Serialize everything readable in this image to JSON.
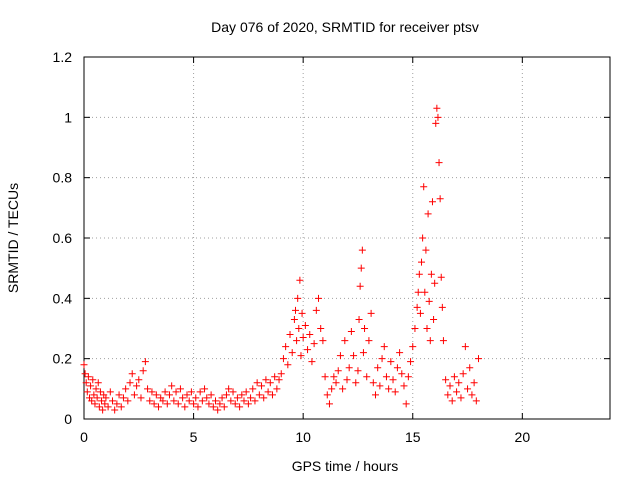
{
  "chart_data": {
    "type": "scatter",
    "title": "Day 076 of 2020, SRMTID for receiver ptsv",
    "xlabel": "GPS time / hours",
    "ylabel": "SRMTID / TECUs",
    "xlim": [
      0,
      24
    ],
    "ylim": [
      0,
      1.2
    ],
    "xticks": [
      0,
      5,
      10,
      15,
      20
    ],
    "yticks": [
      0,
      0.2,
      0.4,
      0.6,
      0.8,
      1,
      1.2
    ],
    "xtick_labels": [
      "0",
      "5",
      "10",
      "15",
      "20"
    ],
    "ytick_labels": [
      "0",
      "0.2",
      "0.4",
      "0.6",
      "0.8",
      "1",
      "1.2"
    ],
    "grid": true,
    "marker": "+",
    "color": "#ff0000",
    "series": [
      {
        "name": "SRMTID",
        "points": [
          [
            0.0,
            0.18
          ],
          [
            0.05,
            0.15
          ],
          [
            0.1,
            0.12
          ],
          [
            0.15,
            0.09
          ],
          [
            0.2,
            0.14
          ],
          [
            0.25,
            0.07
          ],
          [
            0.3,
            0.11
          ],
          [
            0.35,
            0.06
          ],
          [
            0.4,
            0.13
          ],
          [
            0.45,
            0.08
          ],
          [
            0.5,
            0.05
          ],
          [
            0.55,
            0.1
          ],
          [
            0.6,
            0.07
          ],
          [
            0.65,
            0.12
          ],
          [
            0.7,
            0.04
          ],
          [
            0.75,
            0.09
          ],
          [
            0.8,
            0.06
          ],
          [
            0.85,
            0.03
          ],
          [
            0.9,
            0.08
          ],
          [
            0.95,
            0.05
          ],
          [
            1.0,
            0.07
          ],
          [
            1.1,
            0.04
          ],
          [
            1.2,
            0.09
          ],
          [
            1.3,
            0.06
          ],
          [
            1.4,
            0.03
          ],
          [
            1.5,
            0.05
          ],
          [
            1.6,
            0.08
          ],
          [
            1.7,
            0.04
          ],
          [
            1.8,
            0.07
          ],
          [
            1.9,
            0.1
          ],
          [
            2.0,
            0.06
          ],
          [
            2.1,
            0.12
          ],
          [
            2.2,
            0.15
          ],
          [
            2.3,
            0.08
          ],
          [
            2.4,
            0.11
          ],
          [
            2.5,
            0.13
          ],
          [
            2.6,
            0.07
          ],
          [
            2.7,
            0.16
          ],
          [
            2.8,
            0.19
          ],
          [
            2.9,
            0.1
          ],
          [
            3.0,
            0.06
          ],
          [
            3.1,
            0.09
          ],
          [
            3.2,
            0.05
          ],
          [
            3.3,
            0.08
          ],
          [
            3.4,
            0.04
          ],
          [
            3.5,
            0.07
          ],
          [
            3.6,
            0.06
          ],
          [
            3.7,
            0.09
          ],
          [
            3.8,
            0.05
          ],
          [
            3.9,
            0.08
          ],
          [
            4.0,
            0.11
          ],
          [
            4.1,
            0.06
          ],
          [
            4.2,
            0.09
          ],
          [
            4.3,
            0.05
          ],
          [
            4.4,
            0.1
          ],
          [
            4.5,
            0.07
          ],
          [
            4.6,
            0.04
          ],
          [
            4.7,
            0.08
          ],
          [
            4.8,
            0.06
          ],
          [
            4.9,
            0.09
          ],
          [
            5.0,
            0.05
          ],
          [
            5.1,
            0.07
          ],
          [
            5.2,
            0.04
          ],
          [
            5.3,
            0.09
          ],
          [
            5.4,
            0.06
          ],
          [
            5.5,
            0.1
          ],
          [
            5.6,
            0.07
          ],
          [
            5.7,
            0.05
          ],
          [
            5.8,
            0.08
          ],
          [
            5.9,
            0.04
          ],
          [
            6.0,
            0.06
          ],
          [
            6.1,
            0.03
          ],
          [
            6.2,
            0.05
          ],
          [
            6.3,
            0.07
          ],
          [
            6.4,
            0.04
          ],
          [
            6.5,
            0.08
          ],
          [
            6.6,
            0.1
          ],
          [
            6.7,
            0.06
          ],
          [
            6.8,
            0.09
          ],
          [
            6.9,
            0.05
          ],
          [
            7.0,
            0.07
          ],
          [
            7.1,
            0.04
          ],
          [
            7.2,
            0.08
          ],
          [
            7.3,
            0.06
          ],
          [
            7.4,
            0.09
          ],
          [
            7.5,
            0.05
          ],
          [
            7.6,
            0.07
          ],
          [
            7.7,
            0.1
          ],
          [
            7.8,
            0.06
          ],
          [
            7.9,
            0.12
          ],
          [
            8.0,
            0.08
          ],
          [
            8.1,
            0.11
          ],
          [
            8.2,
            0.07
          ],
          [
            8.3,
            0.13
          ],
          [
            8.4,
            0.09
          ],
          [
            8.5,
            0.12
          ],
          [
            8.6,
            0.08
          ],
          [
            8.7,
            0.14
          ],
          [
            8.8,
            0.1
          ],
          [
            8.9,
            0.13
          ],
          [
            9.0,
            0.15
          ],
          [
            9.1,
            0.2
          ],
          [
            9.2,
            0.24
          ],
          [
            9.3,
            0.18
          ],
          [
            9.4,
            0.28
          ],
          [
            9.5,
            0.22
          ],
          [
            9.6,
            0.33
          ],
          [
            9.65,
            0.36
          ],
          [
            9.7,
            0.26
          ],
          [
            9.75,
            0.4
          ],
          [
            9.8,
            0.3
          ],
          [
            9.85,
            0.46
          ],
          [
            9.9,
            0.21
          ],
          [
            9.95,
            0.35
          ],
          [
            10.0,
            0.27
          ],
          [
            10.1,
            0.31
          ],
          [
            10.2,
            0.23
          ],
          [
            10.3,
            0.28
          ],
          [
            10.4,
            0.19
          ],
          [
            10.5,
            0.25
          ],
          [
            10.6,
            0.36
          ],
          [
            10.7,
            0.4
          ],
          [
            10.8,
            0.3
          ],
          [
            10.9,
            0.26
          ],
          [
            11.0,
            0.14
          ],
          [
            11.1,
            0.08
          ],
          [
            11.2,
            0.05
          ],
          [
            11.3,
            0.1
          ],
          [
            11.4,
            0.14
          ],
          [
            11.5,
            0.12
          ],
          [
            11.6,
            0.16
          ],
          [
            11.7,
            0.21
          ],
          [
            11.8,
            0.1
          ],
          [
            11.9,
            0.26
          ],
          [
            12.0,
            0.13
          ],
          [
            12.1,
            0.17
          ],
          [
            12.2,
            0.29
          ],
          [
            12.3,
            0.21
          ],
          [
            12.4,
            0.12
          ],
          [
            12.5,
            0.16
          ],
          [
            12.55,
            0.33
          ],
          [
            12.6,
            0.44
          ],
          [
            12.65,
            0.5
          ],
          [
            12.7,
            0.56
          ],
          [
            12.75,
            0.22
          ],
          [
            12.8,
            0.3
          ],
          [
            12.9,
            0.14
          ],
          [
            13.0,
            0.26
          ],
          [
            13.1,
            0.35
          ],
          [
            13.2,
            0.12
          ],
          [
            13.3,
            0.08
          ],
          [
            13.4,
            0.17
          ],
          [
            13.5,
            0.11
          ],
          [
            13.6,
            0.2
          ],
          [
            13.7,
            0.24
          ],
          [
            13.8,
            0.14
          ],
          [
            13.9,
            0.1
          ],
          [
            14.0,
            0.19
          ],
          [
            14.1,
            0.13
          ],
          [
            14.2,
            0.09
          ],
          [
            14.3,
            0.17
          ],
          [
            14.4,
            0.22
          ],
          [
            14.5,
            0.15
          ],
          [
            14.6,
            0.11
          ],
          [
            14.7,
            0.05
          ],
          [
            14.8,
            0.14
          ],
          [
            14.9,
            0.19
          ],
          [
            15.0,
            0.24
          ],
          [
            15.1,
            0.3
          ],
          [
            15.2,
            0.37
          ],
          [
            15.25,
            0.42
          ],
          [
            15.3,
            0.48
          ],
          [
            15.35,
            0.35
          ],
          [
            15.4,
            0.52
          ],
          [
            15.45,
            0.6
          ],
          [
            15.5,
            0.77
          ],
          [
            15.55,
            0.42
          ],
          [
            15.6,
            0.56
          ],
          [
            15.65,
            0.3
          ],
          [
            15.7,
            0.68
          ],
          [
            15.75,
            0.39
          ],
          [
            15.8,
            0.26
          ],
          [
            15.85,
            0.48
          ],
          [
            15.9,
            0.72
          ],
          [
            15.95,
            0.33
          ],
          [
            16.0,
            0.45
          ],
          [
            16.05,
            0.98
          ],
          [
            16.1,
            1.03
          ],
          [
            16.15,
            1.0
          ],
          [
            16.2,
            0.85
          ],
          [
            16.25,
            0.73
          ],
          [
            16.3,
            0.47
          ],
          [
            16.35,
            0.37
          ],
          [
            16.4,
            0.26
          ],
          [
            16.5,
            0.13
          ],
          [
            16.6,
            0.08
          ],
          [
            16.7,
            0.11
          ],
          [
            16.8,
            0.06
          ],
          [
            16.9,
            0.14
          ],
          [
            17.0,
            0.09
          ],
          [
            17.1,
            0.12
          ],
          [
            17.2,
            0.07
          ],
          [
            17.3,
            0.15
          ],
          [
            17.4,
            0.24
          ],
          [
            17.5,
            0.1
          ],
          [
            17.6,
            0.17
          ],
          [
            17.7,
            0.08
          ],
          [
            17.8,
            0.12
          ],
          [
            17.9,
            0.06
          ],
          [
            18.0,
            0.2
          ]
        ]
      }
    ]
  }
}
